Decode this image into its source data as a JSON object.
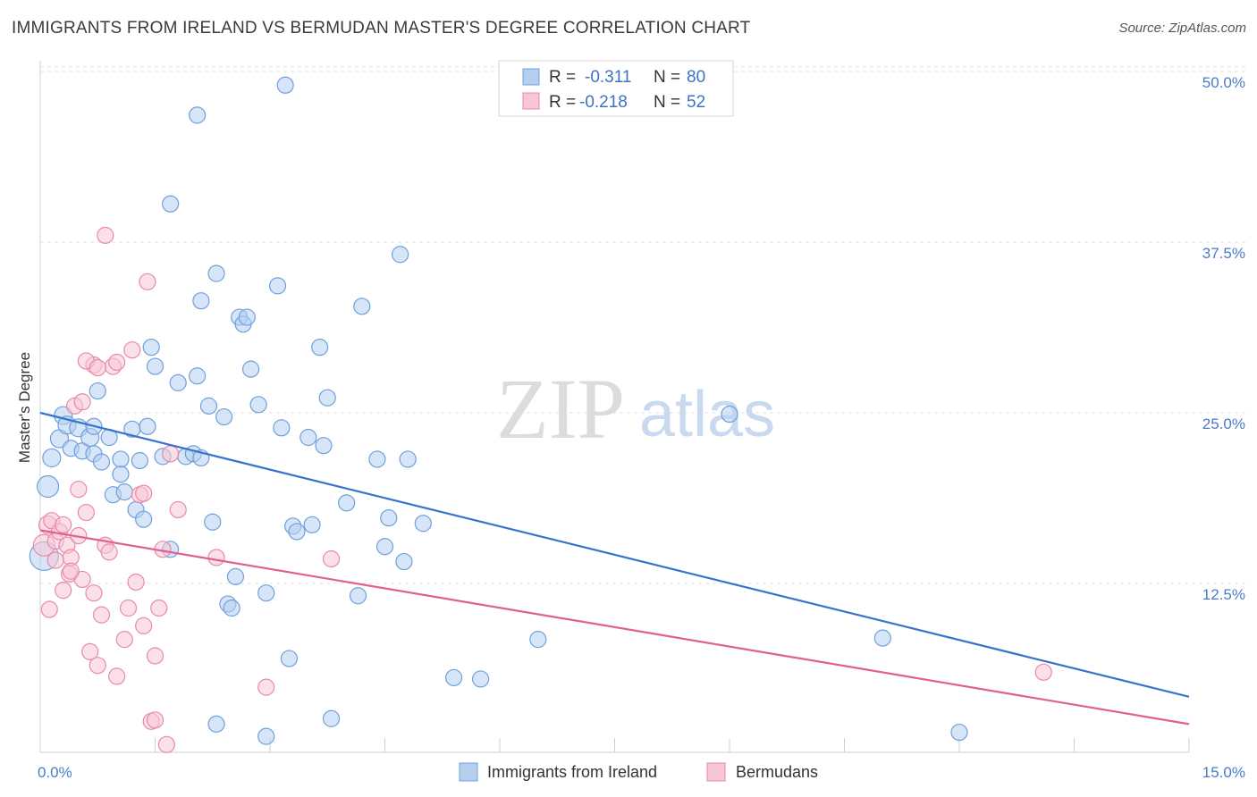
{
  "header": {
    "title": "IMMIGRANTS FROM IRELAND VS BERMUDAN MASTER'S DEGREE CORRELATION CHART",
    "source": "Source: ZipAtlas.com"
  },
  "watermark": {
    "zip": "ZIP",
    "atlas": "atlas"
  },
  "legend_box": {
    "rows": [
      {
        "r_label": "R = ",
        "r_value": "-0.311",
        "n_label": "N = ",
        "n_value": "80",
        "color": "#a9c8f0"
      },
      {
        "r_label": "R = ",
        "r_value": "-0.218",
        "n_label": "N = ",
        "n_value": "52",
        "color": "#f6b8cb"
      }
    ]
  },
  "chart_data": {
    "type": "scatter",
    "title": "IMMIGRANTS FROM IRELAND VS BERMUDAN MASTER'S DEGREE CORRELATION CHART",
    "xlabel": "",
    "ylabel": "Master's Degree",
    "xlim": [
      0,
      15
    ],
    "ylim": [
      0,
      52
    ],
    "x_tick_labels": [
      "0.0%",
      "15.0%"
    ],
    "y_ticks": [
      12.5,
      25.0,
      37.5,
      50.0
    ],
    "y_tick_labels": [
      "12.5%",
      "25.0%",
      "37.5%",
      "50.0%"
    ],
    "grid": true,
    "legend_placement": "bottom",
    "series": [
      {
        "name": "Immigrants from Ireland",
        "color": "#6fa0dc",
        "fill": "#b5cff0",
        "trend": {
          "x": [
            0,
            15
          ],
          "y": [
            25.0,
            4.2
          ]
        },
        "points": [
          [
            0.05,
            14.5,
            16
          ],
          [
            0.1,
            19.6,
            12
          ],
          [
            0.15,
            21.7,
            10
          ],
          [
            0.25,
            23.1,
            10
          ],
          [
            0.3,
            24.8,
            10
          ],
          [
            0.35,
            24.1,
            10
          ],
          [
            0.4,
            22.4,
            9
          ],
          [
            0.5,
            23.9,
            10
          ],
          [
            0.55,
            22.2,
            9
          ],
          [
            0.65,
            23.2,
            10
          ],
          [
            0.7,
            22.0,
            9
          ],
          [
            0.75,
            26.6,
            9
          ],
          [
            0.8,
            21.4,
            9
          ],
          [
            0.9,
            23.2,
            9
          ],
          [
            1.05,
            21.6,
            9
          ],
          [
            0.7,
            24.0,
            9
          ],
          [
            0.95,
            19.0,
            9
          ],
          [
            1.05,
            20.5,
            9
          ],
          [
            1.1,
            19.2,
            9
          ],
          [
            1.2,
            23.8,
            9
          ],
          [
            1.25,
            17.9,
            9
          ],
          [
            1.3,
            21.5,
            9
          ],
          [
            1.35,
            17.2,
            9
          ],
          [
            1.4,
            24.0,
            9
          ],
          [
            1.45,
            29.8,
            9
          ],
          [
            1.5,
            28.4,
            9
          ],
          [
            1.6,
            21.8,
            9
          ],
          [
            1.7,
            40.3,
            9
          ],
          [
            1.7,
            15.0,
            9
          ],
          [
            1.8,
            27.2,
            9
          ],
          [
            1.9,
            21.8,
            9
          ],
          [
            2.0,
            22.0,
            9
          ],
          [
            2.05,
            27.7,
            9
          ],
          [
            2.1,
            21.7,
            9
          ],
          [
            2.05,
            46.8,
            9
          ],
          [
            2.1,
            33.2,
            9
          ],
          [
            2.2,
            25.5,
            9
          ],
          [
            2.25,
            17.0,
            9
          ],
          [
            2.3,
            35.2,
            9
          ],
          [
            2.4,
            24.7,
            9
          ],
          [
            2.45,
            11.0,
            9
          ],
          [
            2.5,
            10.7,
            9
          ],
          [
            2.55,
            13.0,
            9
          ],
          [
            2.6,
            32.0,
            9
          ],
          [
            2.65,
            31.5,
            9
          ],
          [
            2.7,
            32.0,
            9
          ],
          [
            2.75,
            28.2,
            9
          ],
          [
            2.85,
            25.6,
            9
          ],
          [
            2.95,
            11.8,
            9
          ],
          [
            3.1,
            34.3,
            9
          ],
          [
            3.15,
            23.9,
            9
          ],
          [
            3.2,
            49.0,
            9
          ],
          [
            3.25,
            7.0,
            9
          ],
          [
            3.3,
            16.7,
            9
          ],
          [
            3.35,
            16.3,
            9
          ],
          [
            3.5,
            23.2,
            9
          ],
          [
            3.55,
            16.8,
            9
          ],
          [
            3.65,
            29.8,
            9
          ],
          [
            3.7,
            22.6,
            9
          ],
          [
            3.75,
            26.1,
            9
          ],
          [
            4.0,
            18.4,
            9
          ],
          [
            4.15,
            11.6,
            9
          ],
          [
            4.2,
            32.8,
            9
          ],
          [
            4.4,
            21.6,
            9
          ],
          [
            4.5,
            15.2,
            9
          ],
          [
            4.55,
            17.3,
            9
          ],
          [
            4.7,
            36.6,
            9
          ],
          [
            4.75,
            14.1,
            9
          ],
          [
            4.8,
            21.6,
            9
          ],
          [
            5.0,
            16.9,
            9
          ],
          [
            3.8,
            2.6,
            9
          ],
          [
            2.3,
            2.2,
            9
          ],
          [
            2.95,
            1.3,
            9
          ],
          [
            5.4,
            5.6,
            9
          ],
          [
            5.75,
            5.5,
            9
          ],
          [
            6.5,
            8.4,
            9
          ],
          [
            9.0,
            24.9,
            9
          ],
          [
            11.0,
            8.5,
            9
          ],
          [
            12.0,
            1.6,
            9
          ],
          [
            4.5,
            17.5,
            0
          ]
        ]
      },
      {
        "name": "Bermudans",
        "color": "#e88aa8",
        "fill": "#f8c6d5",
        "trend": {
          "x": [
            0,
            15
          ],
          "y": [
            16.4,
            2.2
          ]
        },
        "points": [
          [
            0.05,
            15.3,
            12
          ],
          [
            0.1,
            16.8,
            10
          ],
          [
            0.12,
            10.6,
            9
          ],
          [
            0.15,
            17.1,
            9
          ],
          [
            0.2,
            15.6,
            9
          ],
          [
            0.25,
            16.3,
            9
          ],
          [
            0.3,
            16.8,
            9
          ],
          [
            0.35,
            15.3,
            9
          ],
          [
            0.38,
            13.2,
            9
          ],
          [
            0.4,
            14.4,
            9
          ],
          [
            0.45,
            25.5,
            9
          ],
          [
            0.5,
            16.0,
            9
          ],
          [
            0.55,
            12.8,
            9
          ],
          [
            0.6,
            17.7,
            9
          ],
          [
            0.65,
            7.5,
            9
          ],
          [
            0.7,
            11.8,
            9
          ],
          [
            0.75,
            6.5,
            9
          ],
          [
            0.8,
            10.2,
            9
          ],
          [
            0.85,
            15.3,
            9
          ],
          [
            0.9,
            14.8,
            9
          ],
          [
            0.95,
            28.4,
            9
          ],
          [
            1.0,
            5.7,
            9
          ],
          [
            1.1,
            8.4,
            9
          ],
          [
            1.15,
            10.7,
            9
          ],
          [
            1.2,
            29.6,
            9
          ],
          [
            1.25,
            12.6,
            9
          ],
          [
            1.3,
            19.0,
            9
          ],
          [
            1.35,
            9.4,
            9
          ],
          [
            1.45,
            2.4,
            9
          ],
          [
            1.5,
            7.2,
            9
          ],
          [
            1.55,
            10.7,
            9
          ],
          [
            1.6,
            15.0,
            9
          ],
          [
            1.65,
            0.7,
            9
          ],
          [
            1.7,
            22.0,
            9
          ],
          [
            1.8,
            17.9,
            9
          ],
          [
            2.3,
            14.4,
            9
          ],
          [
            2.95,
            4.9,
            9
          ],
          [
            3.8,
            14.3,
            9
          ],
          [
            1.4,
            34.6,
            9
          ],
          [
            0.85,
            38.0,
            9
          ],
          [
            0.7,
            28.5,
            9
          ],
          [
            0.6,
            28.8,
            9
          ],
          [
            0.75,
            28.3,
            9
          ],
          [
            1.0,
            28.7,
            9
          ],
          [
            0.4,
            13.4,
            9
          ],
          [
            0.2,
            14.2,
            9
          ],
          [
            0.5,
            19.4,
            9
          ],
          [
            1.35,
            19.1,
            9
          ],
          [
            0.3,
            12.0,
            9
          ],
          [
            1.5,
            2.5,
            9
          ],
          [
            13.1,
            6.0,
            9
          ],
          [
            0.55,
            25.8,
            9
          ]
        ]
      }
    ]
  }
}
